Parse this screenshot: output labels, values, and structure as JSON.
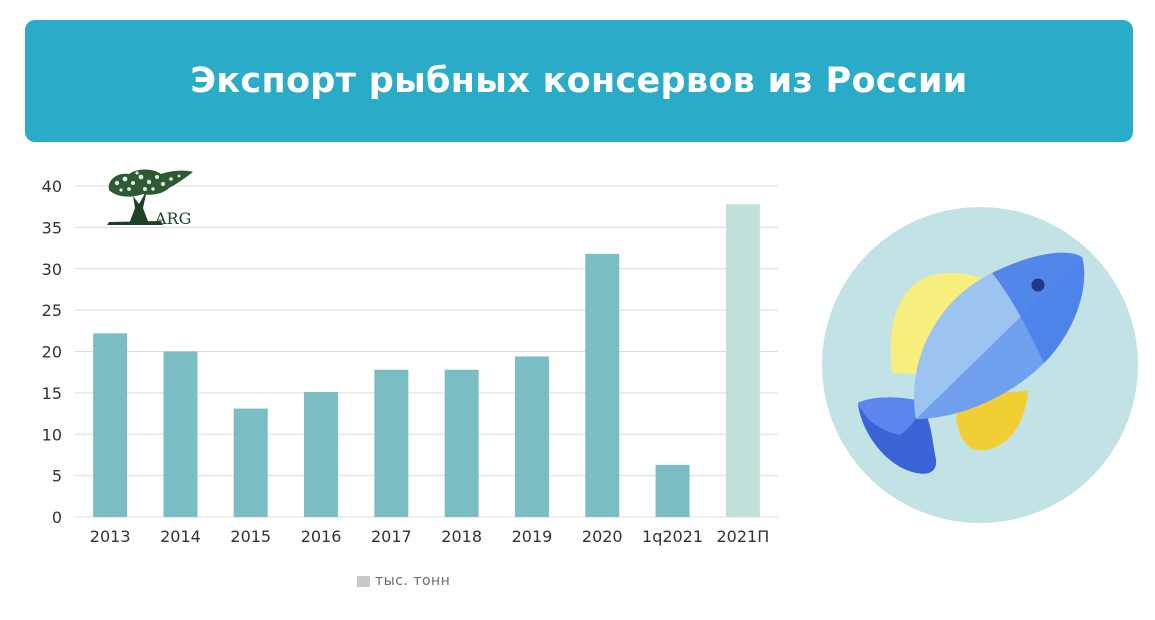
{
  "title": "Экспорт рыбных консервов из России",
  "logo_text": "ARG",
  "legend": {
    "label": "тыс. тонн"
  },
  "colors": {
    "banner": "#2aacc8",
    "bar": "#7abec4",
    "bar_forecast": "#c2e0da",
    "fish_circle": "#c3e2e5"
  },
  "icons": {
    "fish": "fish-illustration",
    "logo": "tree-logo"
  },
  "chart_data": {
    "type": "bar",
    "categories": [
      "2013",
      "2014",
      "2015",
      "2016",
      "2017",
      "2018",
      "2019",
      "2020",
      "1q2021",
      "2021П"
    ],
    "series": [
      {
        "name": "тыс. тонн",
        "values": [
          22.2,
          20,
          13.1,
          15.1,
          17.8,
          17.8,
          19.4,
          31.8,
          6.3,
          37.8
        ]
      }
    ],
    "forecast_categories": [
      "2021П"
    ],
    "ylim": [
      0,
      40
    ],
    "yticks": [
      0,
      5,
      10,
      15,
      20,
      25,
      30,
      35,
      40
    ],
    "grid": true,
    "legend_position": "bottom",
    "title": "",
    "xlabel": "",
    "ylabel": ""
  }
}
